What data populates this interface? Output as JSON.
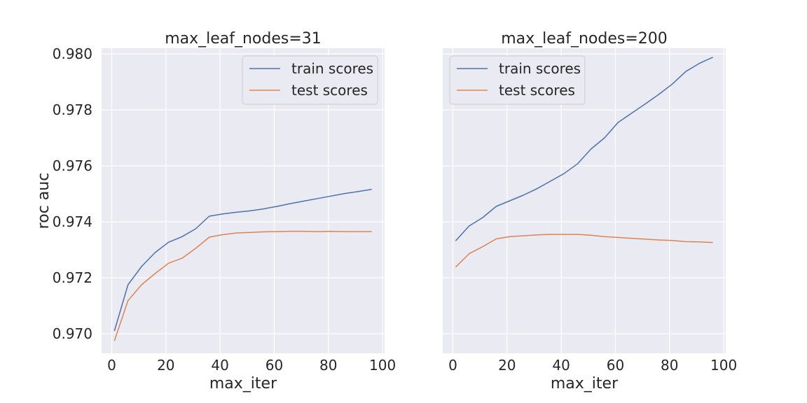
{
  "colors": {
    "background": "#eaeaf2",
    "grid": "#ffffff",
    "train": "#4c72b0",
    "test": "#dd8452",
    "legend_bg": "#eaeaf2",
    "legend_border": "#cccccc"
  },
  "chart_data": [
    {
      "type": "line",
      "title": "max_leaf_nodes=31",
      "xlabel": "max_iter",
      "ylabel": "roc auc",
      "xlim": [
        -3.75,
        100.75
      ],
      "ylim": [
        0.9693,
        0.9802
      ],
      "xticks": [
        "0",
        "20",
        "40",
        "60",
        "80",
        "100"
      ],
      "yticks": [
        "0.970",
        "0.972",
        "0.974",
        "0.976",
        "0.978",
        "0.980"
      ],
      "grid": true,
      "legend_position": "upper right",
      "x": [
        1,
        6,
        11,
        16,
        21,
        26,
        31,
        36,
        41,
        46,
        51,
        56,
        61,
        66,
        71,
        76,
        81,
        86,
        91,
        96
      ],
      "series": [
        {
          "name": "train scores",
          "color_key": "train",
          "values": [
            0.9701,
            0.97175,
            0.9724,
            0.9729,
            0.97327,
            0.97347,
            0.97375,
            0.9742,
            0.97428,
            0.97434,
            0.97439,
            0.97446,
            0.97455,
            0.97465,
            0.97474,
            0.97483,
            0.97492,
            0.97501,
            0.97508,
            0.97516
          ]
        },
        {
          "name": "test scores",
          "color_key": "test",
          "values": [
            0.96975,
            0.97118,
            0.97175,
            0.97215,
            0.97252,
            0.9727,
            0.97305,
            0.97345,
            0.97354,
            0.9736,
            0.97362,
            0.97364,
            0.97365,
            0.97366,
            0.97366,
            0.97365,
            0.97366,
            0.97365,
            0.97365,
            0.97365
          ]
        }
      ]
    },
    {
      "type": "line",
      "title": "max_leaf_nodes=200",
      "xlabel": "max_iter",
      "ylabel": "",
      "xlim": [
        -3.75,
        100.75
      ],
      "ylim": [
        0.9693,
        0.9802
      ],
      "xticks": [
        "0",
        "20",
        "40",
        "60",
        "80",
        "100"
      ],
      "yticks": [],
      "grid": true,
      "legend_position": "upper left",
      "x": [
        1,
        6,
        11,
        16,
        21,
        26,
        31,
        36,
        41,
        46,
        51,
        56,
        61,
        66,
        71,
        76,
        81,
        86,
        91,
        96
      ],
      "series": [
        {
          "name": "train scores",
          "color_key": "train",
          "values": [
            0.97332,
            0.97385,
            0.97415,
            0.97455,
            0.97475,
            0.97495,
            0.97518,
            0.97545,
            0.97572,
            0.97607,
            0.9766,
            0.977,
            0.97755,
            0.97788,
            0.97821,
            0.97855,
            0.97892,
            0.97937,
            0.97966,
            0.97988
          ]
        },
        {
          "name": "test scores",
          "color_key": "test",
          "values": [
            0.97238,
            0.97286,
            0.97311,
            0.97339,
            0.97347,
            0.9735,
            0.97353,
            0.97355,
            0.97355,
            0.97355,
            0.97352,
            0.97347,
            0.97344,
            0.97341,
            0.97338,
            0.97335,
            0.97333,
            0.97329,
            0.97328,
            0.97326
          ]
        }
      ]
    }
  ]
}
